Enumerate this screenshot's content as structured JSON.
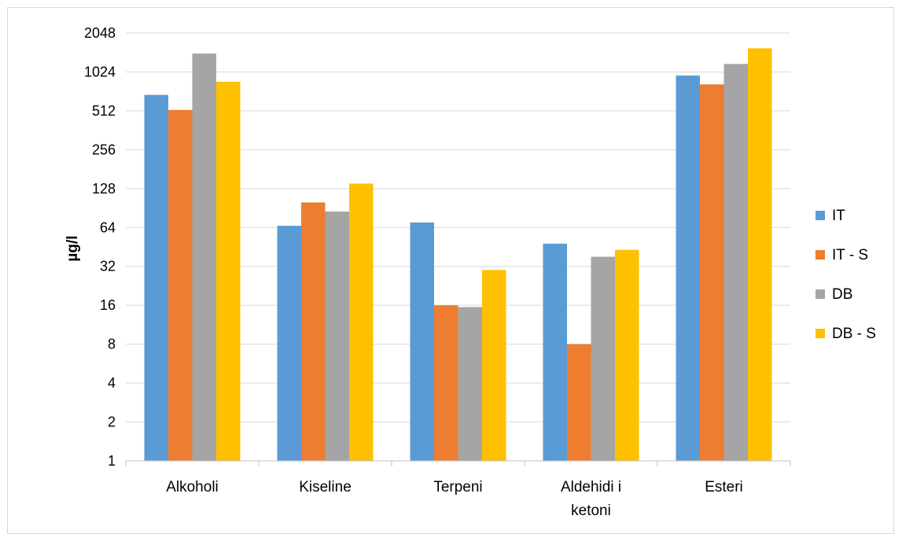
{
  "chart_data": {
    "type": "bar",
    "title": "",
    "xlabel": "",
    "ylabel": "µg/l",
    "yscale": "log2",
    "ylim": [
      1,
      2048
    ],
    "yticks": [
      "1",
      "2",
      "4",
      "8",
      "16",
      "32",
      "64",
      "128",
      "256",
      "512",
      "1024",
      "2048"
    ],
    "categories": [
      "Alkoholi",
      "Kiseline",
      "Terpeni",
      "Aldehidi i ketoni",
      "Esteri"
    ],
    "series": [
      {
        "name": "IT",
        "color": "#5b9bd5",
        "values": [
          680,
          66,
          70,
          48,
          960
        ]
      },
      {
        "name": "IT - S",
        "color": "#ed7d31",
        "values": [
          520,
          100,
          16,
          8,
          820
        ]
      },
      {
        "name": "DB",
        "color": "#a5a5a5",
        "values": [
          1420,
          85,
          15.5,
          38,
          1180
        ]
      },
      {
        "name": "DB - S",
        "color": "#ffc000",
        "values": [
          860,
          140,
          30,
          43,
          1560
        ]
      }
    ],
    "grid": true,
    "legend_position": "right"
  }
}
